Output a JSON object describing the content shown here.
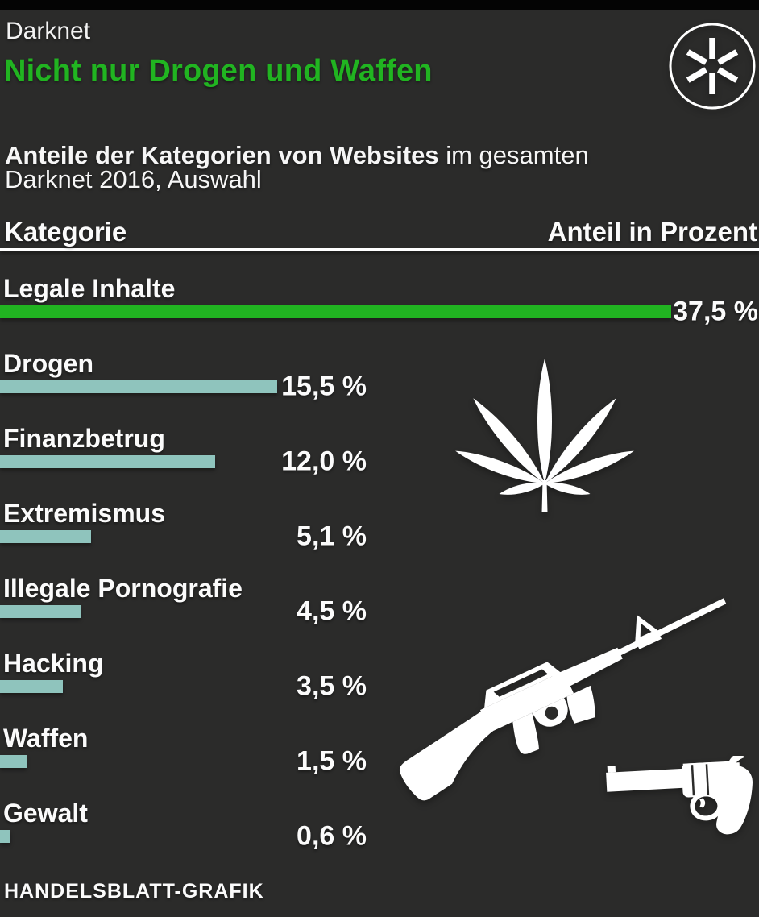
{
  "colors": {
    "background": "#2b2b2a",
    "top_strip": "#040404",
    "accent_green": "#21b421",
    "bar_teal": "#8fc4bd",
    "text_white": "#fbfbfb"
  },
  "header": {
    "kicker": "Darknet",
    "title": "Nicht nur Drogen und Waffen"
  },
  "subtitle": {
    "lead_bold": "Anteile der Kategorien von Websites",
    "lead_rest": " im gesamten",
    "line2": "Darknet 2016, Auswahl"
  },
  "table_header": {
    "left": "Kategorie",
    "right": "Anteil in Prozent"
  },
  "chart_data": {
    "type": "bar",
    "orientation": "horizontal",
    "title": "Nicht nur Drogen und Waffen",
    "subtitle": "Anteile der Kategorien von Websites im gesamten Darknet 2016, Auswahl",
    "xlabel": "Anteil in Prozent",
    "xlim": [
      0,
      37.5
    ],
    "grid": false,
    "legend": false,
    "categories": [
      "Legale Inhalte",
      "Drogen",
      "Finanzbetrug",
      "Extremismus",
      "Illegale Pornografie",
      "Hacking",
      "Waffen",
      "Gewalt"
    ],
    "values": [
      37.5,
      15.5,
      12.0,
      5.1,
      4.5,
      3.5,
      1.5,
      0.6
    ],
    "value_labels": [
      "37,5 %",
      "15,5 %",
      "12,0 %",
      "5,1 %",
      "4,5 %",
      "3,5 %",
      "1,5 %",
      "0,6 %"
    ],
    "highlight_index": 0,
    "highlight_color": "#21b421",
    "bar_color": "#8fc4bd"
  },
  "icons": {
    "logo": "asterisk-circle-icon",
    "drugs": "cannabis-leaf-icon",
    "rifle": "assault-rifle-icon",
    "revolver": "revolver-icon"
  },
  "footer": {
    "credit": "HANDELSBLATT-GRAFIK"
  }
}
